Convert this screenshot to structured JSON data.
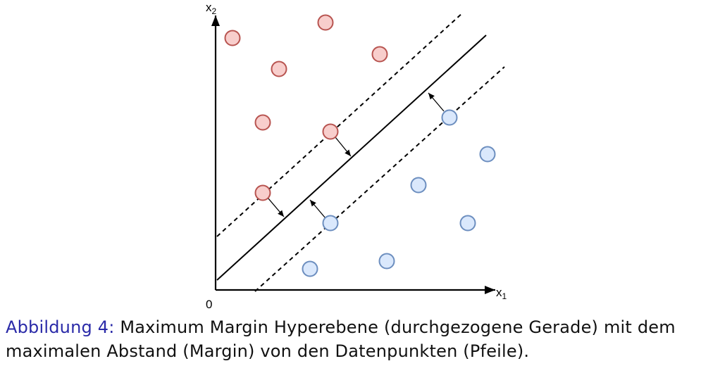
{
  "axes": {
    "x_label": "x",
    "x_subscript": "1",
    "y_label": "x",
    "y_subscript": "2",
    "origin_label": "0"
  },
  "classes": {
    "red": {
      "fill": "#f8cecc",
      "stroke": "#b85450"
    },
    "blue": {
      "fill": "#dae8fc",
      "stroke": "#6c8ebf"
    }
  },
  "caption": {
    "label": "Abbildung 4:",
    "text": " Maximum Margin Hyperebene (durchgezogene Gerade) mit dem maximalen Abstand (Margin) von den Datenpunkten (Pfeile)."
  }
}
